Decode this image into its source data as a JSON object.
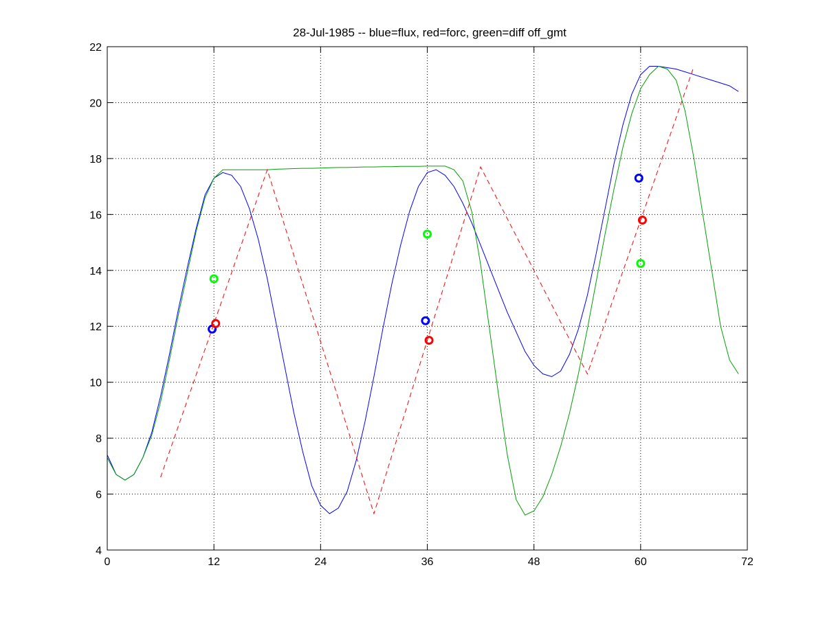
{
  "chart_data": {
    "type": "line",
    "title": "28-Jul-1985 -- blue=flux, red=forc, green=diff off_gmt",
    "xlabel": "",
    "ylabel": "",
    "xlim": [
      0,
      72
    ],
    "ylim": [
      4,
      22
    ],
    "xticks": [
      0,
      12,
      24,
      36,
      48,
      60,
      72
    ],
    "yticks": [
      4,
      6,
      8,
      10,
      12,
      14,
      16,
      18,
      20,
      22
    ],
    "grid": true,
    "colors": {
      "blue": "#0000ff",
      "red": "#ff0000",
      "green": "#00a000",
      "green_marker": "#00ff00"
    },
    "series": [
      {
        "key": "flux",
        "color": "#0000ff",
        "style": "solid",
        "x": [
          0,
          1,
          2,
          3,
          4,
          5,
          6,
          7,
          8,
          9,
          10,
          11,
          12,
          13,
          14,
          15,
          16,
          17,
          18,
          19,
          20,
          21,
          22,
          23,
          24,
          25,
          26,
          27,
          28,
          29,
          30,
          31,
          32,
          33,
          34,
          35,
          36,
          37,
          38,
          39,
          40,
          41,
          42,
          43,
          44,
          45,
          46,
          47,
          48,
          49,
          50,
          51,
          52,
          53,
          54,
          55,
          56,
          57,
          58,
          59,
          60,
          61,
          62,
          63,
          64,
          65,
          66,
          67,
          68,
          69,
          70,
          71
        ],
        "y": [
          7.4,
          6.7,
          6.5,
          6.7,
          7.3,
          8.2,
          9.5,
          11.0,
          12.6,
          14.1,
          15.5,
          16.7,
          17.3,
          17.5,
          17.4,
          17.0,
          16.2,
          15.1,
          13.7,
          12.1,
          10.5,
          8.9,
          7.5,
          6.3,
          5.6,
          5.3,
          5.5,
          6.1,
          7.2,
          8.6,
          10.2,
          11.9,
          13.5,
          14.9,
          16.1,
          17.0,
          17.5,
          17.6,
          17.4,
          17.0,
          16.4,
          15.7,
          14.9,
          14.1,
          13.3,
          12.5,
          11.8,
          11.1,
          10.6,
          10.3,
          10.2,
          10.4,
          11.0,
          11.9,
          13.1,
          14.6,
          16.2,
          17.8,
          19.2,
          20.3,
          21.0,
          21.3,
          21.3,
          21.25,
          21.2,
          21.1,
          21.0,
          20.9,
          20.8,
          20.7,
          20.6,
          20.4
        ]
      },
      {
        "key": "forc",
        "color": "#ff0000",
        "style": "dashed",
        "x": [
          6,
          18,
          30,
          42,
          54,
          66
        ],
        "y": [
          6.6,
          17.6,
          5.3,
          17.7,
          10.3,
          21.3
        ]
      },
      {
        "key": "diff",
        "color": "#00a000",
        "style": "solid",
        "x": [
          0,
          1,
          2,
          3,
          4,
          5,
          6,
          7,
          8,
          9,
          10,
          11,
          12,
          13,
          14,
          15,
          16,
          17,
          18,
          19,
          20,
          21,
          22,
          23,
          24,
          25,
          26,
          27,
          28,
          29,
          30,
          31,
          32,
          33,
          34,
          35,
          36,
          37,
          38,
          39,
          40,
          41,
          42,
          43,
          44,
          45,
          46,
          47,
          48,
          49,
          50,
          51,
          52,
          53,
          54,
          55,
          56,
          57,
          58,
          59,
          60,
          61,
          62,
          63,
          64,
          65,
          66,
          67,
          68,
          69,
          70,
          71
        ],
        "y": [
          7.3,
          6.7,
          6.5,
          6.7,
          7.3,
          8.1,
          9.3,
          10.8,
          12.4,
          13.9,
          15.4,
          16.6,
          17.3,
          17.6,
          17.6,
          17.6,
          17.6,
          17.6,
          17.6,
          17.62,
          17.63,
          17.64,
          17.65,
          17.65,
          17.66,
          17.67,
          17.68,
          17.68,
          17.69,
          17.7,
          17.7,
          17.71,
          17.71,
          17.72,
          17.72,
          17.72,
          17.73,
          17.73,
          17.73,
          17.6,
          17.2,
          16.1,
          14.2,
          11.9,
          9.6,
          7.4,
          5.8,
          5.25,
          5.4,
          5.9,
          6.7,
          7.7,
          8.9,
          10.3,
          11.9,
          13.6,
          15.3,
          16.9,
          18.4,
          19.6,
          20.5,
          21.0,
          21.3,
          21.2,
          20.8,
          19.7,
          18.0,
          16.0,
          14.0,
          12.0,
          10.8,
          10.3
        ]
      }
    ],
    "markers": [
      {
        "x": 11.8,
        "y": 11.9,
        "color": "#0000ff"
      },
      {
        "x": 12.2,
        "y": 12.1,
        "color": "#ff0000"
      },
      {
        "x": 12.0,
        "y": 13.7,
        "color": "#00ff00"
      },
      {
        "x": 35.8,
        "y": 12.2,
        "color": "#0000ff"
      },
      {
        "x": 36.2,
        "y": 11.5,
        "color": "#ff0000"
      },
      {
        "x": 36.0,
        "y": 15.3,
        "color": "#00ff00"
      },
      {
        "x": 59.8,
        "y": 17.3,
        "color": "#0000ff"
      },
      {
        "x": 60.2,
        "y": 15.8,
        "color": "#ff0000"
      },
      {
        "x": 60.0,
        "y": 14.25,
        "color": "#00ff00"
      }
    ]
  }
}
